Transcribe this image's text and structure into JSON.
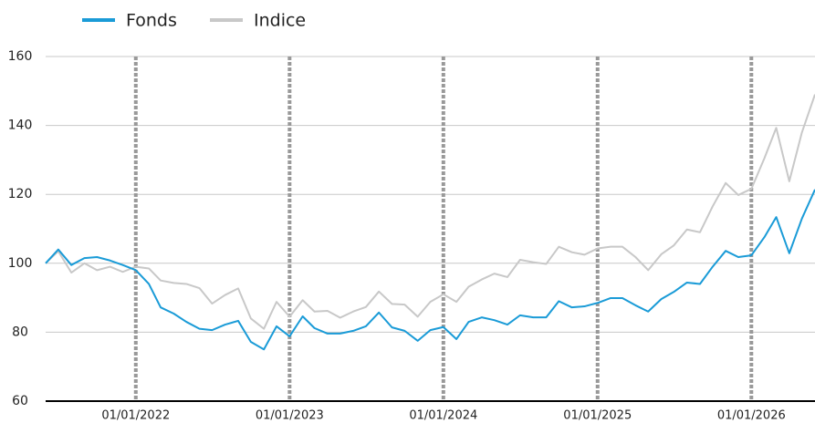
{
  "chart_data": {
    "type": "line",
    "x": [
      "2021-06-01",
      "2021-07-01",
      "2021-08-01",
      "2021-09-01",
      "2021-10-01",
      "2021-11-01",
      "2021-12-01",
      "2022-01-01",
      "2022-02-01",
      "2022-03-01",
      "2022-04-01",
      "2022-05-01",
      "2022-06-01",
      "2022-07-01",
      "2022-08-01",
      "2022-09-01",
      "2022-10-01",
      "2022-11-01",
      "2022-12-01",
      "2023-01-01",
      "2023-02-01",
      "2023-03-01",
      "2023-04-01",
      "2023-05-01",
      "2023-06-01",
      "2023-07-01",
      "2023-08-01",
      "2023-09-01",
      "2023-10-01",
      "2023-11-01",
      "2023-12-01",
      "2024-01-01",
      "2024-02-01",
      "2024-03-01",
      "2024-04-01",
      "2024-05-01",
      "2024-06-01",
      "2024-07-01",
      "2024-08-01",
      "2024-09-01",
      "2024-10-01",
      "2024-11-01",
      "2024-12-01",
      "2025-01-01",
      "2025-02-01",
      "2025-03-01",
      "2025-04-01",
      "2025-05-01",
      "2025-06-01",
      "2025-07-01",
      "2025-08-01",
      "2025-09-01",
      "2025-10-01",
      "2025-11-01",
      "2025-12-01",
      "2026-01-01",
      "2026-02-01",
      "2026-03-01",
      "2026-04-01",
      "2026-05-01",
      "2026-06-01"
    ],
    "series": [
      {
        "name": "Fonds",
        "color": "#1a9bd7",
        "values": [
          100,
          104,
          99.5,
          101.5,
          101.8,
          100.8,
          99.5,
          98,
          94,
          87.2,
          85.4,
          83,
          81,
          80.6,
          82.2,
          83.3,
          77.2,
          75,
          81.7,
          78.8,
          84.6,
          81.2,
          79.6,
          79.6,
          80.4,
          81.7,
          85.7,
          81.4,
          80.4,
          77.5,
          80.6,
          81.5,
          78,
          83,
          84.3,
          83.5,
          82.2,
          84.9,
          84.3,
          84.3,
          89,
          87.2,
          87.5,
          88.5,
          89.9,
          89.9,
          87.8,
          86,
          89.6,
          91.7,
          94.4,
          94,
          99,
          103.6,
          101.8,
          102.3,
          107.6,
          113.4,
          102.9,
          113,
          121.4
        ]
      },
      {
        "name": "Indice",
        "color": "#c8c8c8",
        "values": [
          100,
          103.5,
          97.3,
          100,
          98,
          99,
          97.5,
          99,
          98.5,
          95,
          94.3,
          94,
          92.8,
          88.3,
          90.8,
          92.7,
          84,
          81,
          88.8,
          84.5,
          89.3,
          86,
          86.2,
          84.2,
          86,
          87.3,
          91.8,
          88.2,
          88,
          84.5,
          88.8,
          91,
          88.8,
          93.2,
          95.3,
          97,
          96,
          101,
          100.3,
          99.8,
          104.8,
          103.2,
          102.5,
          104.3,
          104.8,
          104.8,
          101.8,
          98,
          102.6,
          105.2,
          109.8,
          109,
          116.5,
          123.3,
          119.8,
          121.6,
          130.5,
          139.3,
          123.8,
          138,
          149
        ]
      }
    ],
    "xlim": [
      "2021-06-01",
      "2026-06-01"
    ],
    "xticks": [
      {
        "value": "2022-01-01",
        "label": "01/01/2022"
      },
      {
        "value": "2023-01-01",
        "label": "01/01/2023"
      },
      {
        "value": "2024-01-01",
        "label": "01/01/2024"
      },
      {
        "value": "2025-01-01",
        "label": "01/01/2025"
      },
      {
        "value": "2026-01-01",
        "label": "01/01/2026"
      }
    ],
    "ylim": [
      60,
      160
    ],
    "yticks": [
      60,
      80,
      100,
      120,
      140,
      160
    ],
    "grid": true,
    "legend": "top-left"
  }
}
